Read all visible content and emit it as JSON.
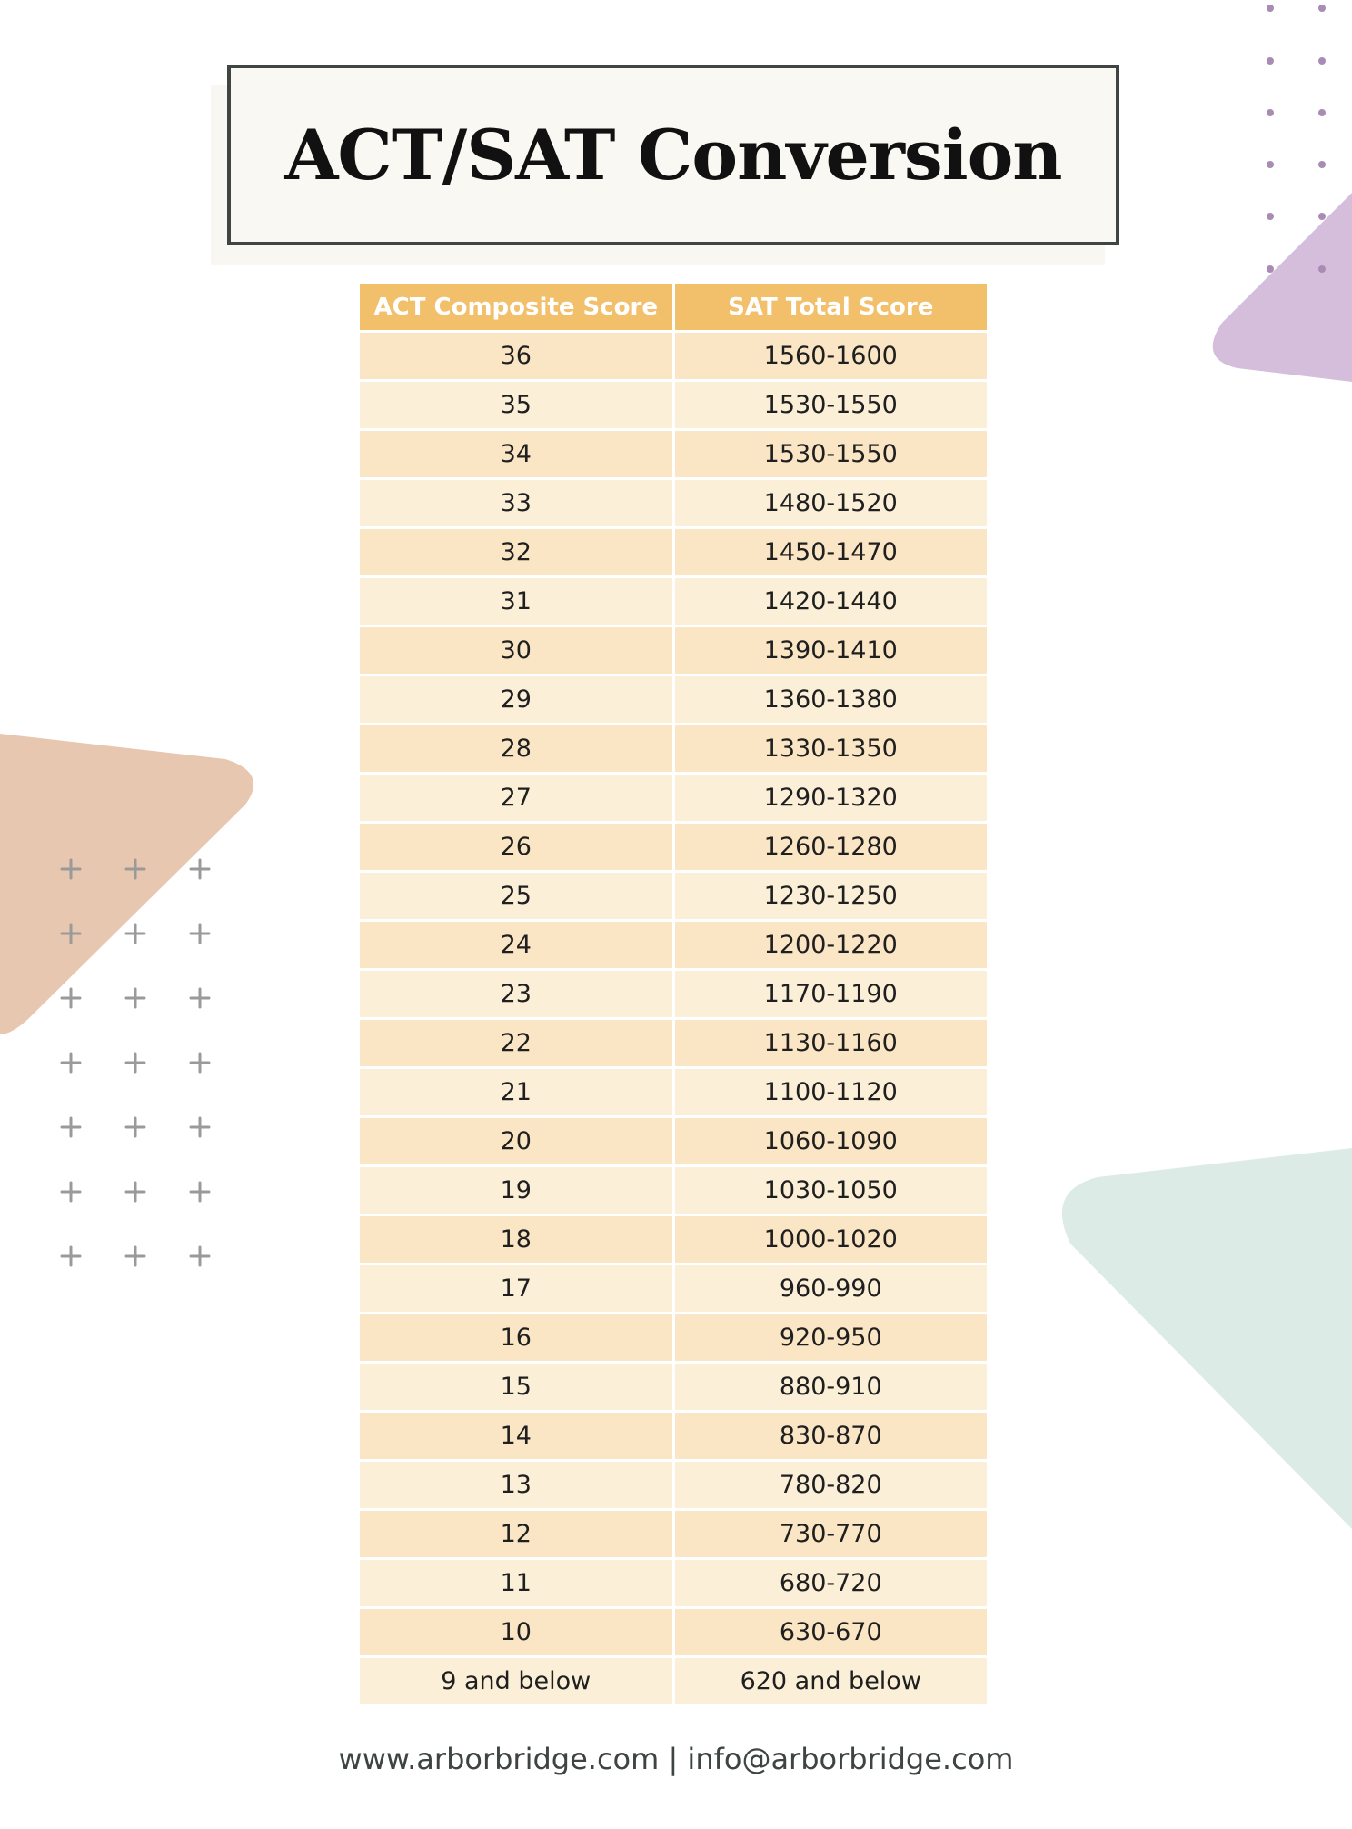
{
  "title": "ACT/SAT Conversion",
  "table": {
    "headers": [
      "ACT Composite Score",
      "SAT Total Score"
    ],
    "rows": [
      [
        "36",
        "1560-1600"
      ],
      [
        "35",
        "1530-1550"
      ],
      [
        "34",
        "1530-1550"
      ],
      [
        "33",
        "1480-1520"
      ],
      [
        "32",
        "1450-1470"
      ],
      [
        "31",
        "1420-1440"
      ],
      [
        "30",
        "1390-1410"
      ],
      [
        "29",
        "1360-1380"
      ],
      [
        "28",
        "1330-1350"
      ],
      [
        "27",
        "1290-1320"
      ],
      [
        "26",
        "1260-1280"
      ],
      [
        "25",
        "1230-1250"
      ],
      [
        "24",
        "1200-1220"
      ],
      [
        "23",
        "1170-1190"
      ],
      [
        "22",
        "1130-1160"
      ],
      [
        "21",
        "1100-1120"
      ],
      [
        "20",
        "1060-1090"
      ],
      [
        "19",
        "1030-1050"
      ],
      [
        "18",
        "1000-1020"
      ],
      [
        "17",
        "960-990"
      ],
      [
        "16",
        "920-950"
      ],
      [
        "15",
        "880-910"
      ],
      [
        "14",
        "830-870"
      ],
      [
        "13",
        "780-820"
      ],
      [
        "12",
        "730-770"
      ],
      [
        "11",
        "680-720"
      ],
      [
        "10",
        "630-670"
      ],
      [
        "9 and below",
        "620 and below"
      ]
    ]
  },
  "footer": "www.arborbridge.com | info@arborbridge.com",
  "colors": {
    "header_bg": "#f2bf6b",
    "row_odd": "#fae5c4",
    "row_even": "#fcefd8",
    "peach_shape": "#e8c7b1",
    "purple_shape": "#d4bedb",
    "mint_shape": "#dcebe6"
  }
}
